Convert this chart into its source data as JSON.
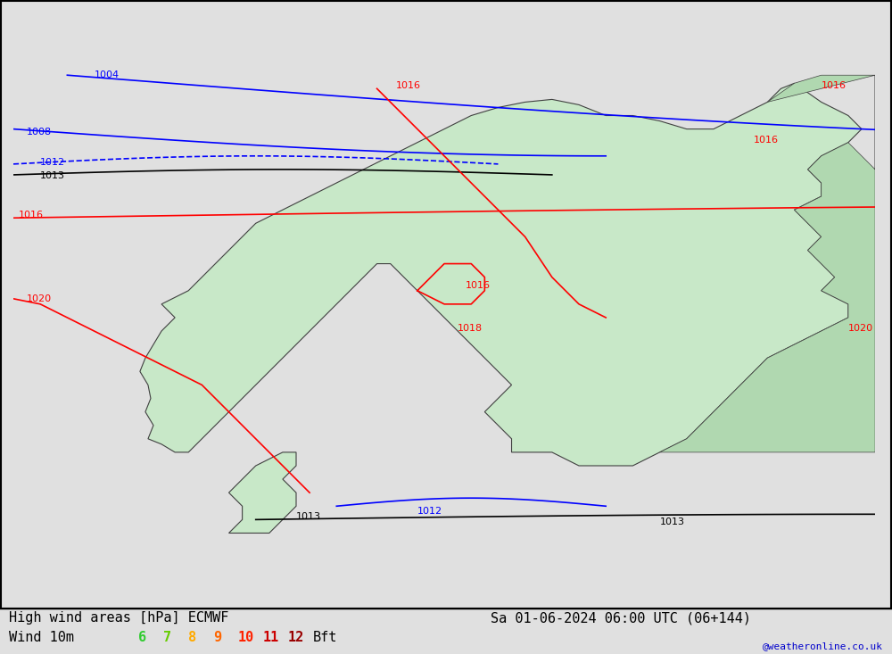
{
  "title_left": "High wind areas [hPa] ECMWF",
  "title_right": "Sa 01-06-2024 06:00 UTC (06+144)",
  "subtitle_left": "Wind 10m",
  "bft_labels": [
    "6",
    "7",
    "8",
    "9",
    "10",
    "11",
    "12"
  ],
  "bft_colors": [
    "#00cc00",
    "#00cc00",
    "#ffaa00",
    "#ff6600",
    "#ff0000",
    "#cc0000",
    "#990000"
  ],
  "bft_suffix": " Bft",
  "watermark": "@weatheronline.co.uk",
  "background_color": "#e8e8e8",
  "land_color_low": "#c8e8c8",
  "land_color_high": "#90cc90",
  "coastline_color": "#404040",
  "border_color": "#404040",
  "isobar_blue_color": "#0000ff",
  "isobar_black_color": "#000000",
  "isobar_red_color": "#ff0000",
  "green_region_color": "#a8d8a8",
  "title_fontsize": 11,
  "label_fontsize": 10
}
